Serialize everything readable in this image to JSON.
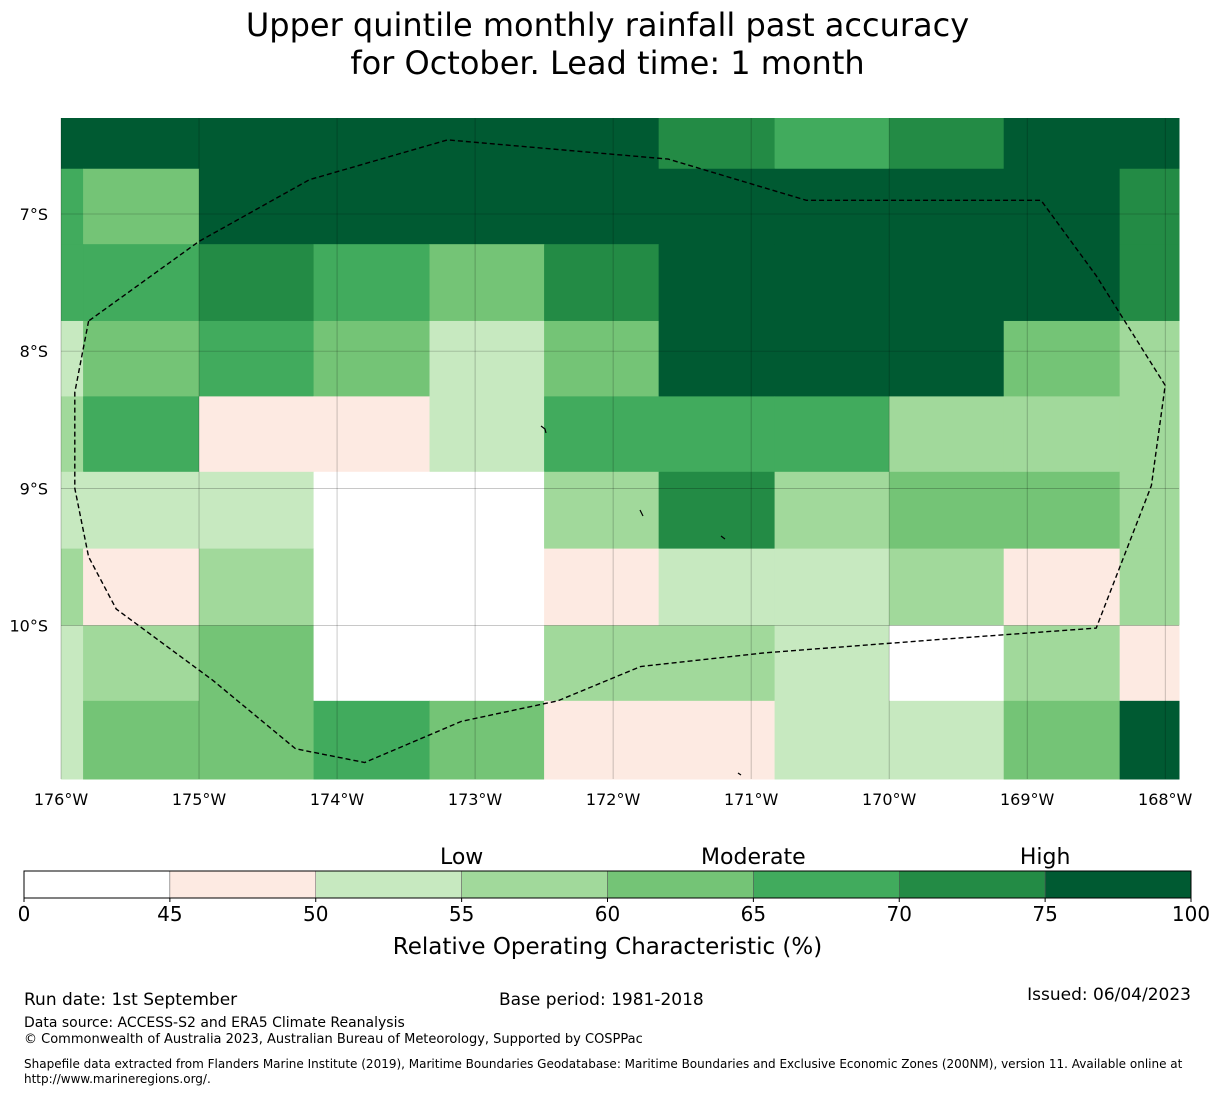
{
  "title_lines": [
    "Upper quintile monthly rainfall past accuracy",
    "for October. Lead time: 1 month"
  ],
  "chart_data": {
    "type": "heatmap",
    "map": {
      "lon_range": [
        -176,
        -167.9
      ],
      "lat_range": [
        -11.12,
        -6.3
      ],
      "x_tick_values": [
        -176,
        -175,
        -174,
        -173,
        -172,
        -171,
        -170,
        -169,
        -168
      ],
      "x_tick_labels": [
        "176°W",
        "175°W",
        "174°W",
        "173°W",
        "172°W",
        "171°W",
        "170°W",
        "169°W",
        "168°W"
      ],
      "y_tick_values": [
        -7,
        -8,
        -9,
        -10
      ],
      "y_tick_labels": [
        "7°S",
        "8°S",
        "9°S",
        "10°S"
      ],
      "cell_lon_edges": [
        -176,
        -175.84,
        -175.0,
        -174.17,
        -173.33,
        -172.5,
        -171.67,
        -170.83,
        -170.0,
        -169.17,
        -168.33,
        -167.9
      ],
      "cell_lat_edges": [
        -6.3,
        -6.67,
        -7.22,
        -7.78,
        -8.33,
        -8.88,
        -9.44,
        -10.0,
        -10.55,
        -11.12
      ],
      "roc_values": [
        [
          80,
          80,
          80,
          80,
          80,
          80,
          72,
          67,
          72,
          80,
          80
        ],
        [
          67,
          62,
          80,
          80,
          80,
          80,
          80,
          80,
          80,
          80,
          72
        ],
        [
          67,
          67,
          72,
          67,
          62,
          72,
          80,
          80,
          80,
          80,
          72
        ],
        [
          52,
          62,
          67,
          62,
          52,
          62,
          80,
          80,
          80,
          62,
          57
        ],
        [
          57,
          67,
          47,
          47,
          52,
          67,
          67,
          67,
          57,
          57,
          57
        ],
        [
          52,
          52,
          52,
          40,
          40,
          57,
          72,
          57,
          62,
          62,
          57
        ],
        [
          57,
          47,
          57,
          40,
          40,
          47,
          52,
          52,
          57,
          47,
          57
        ],
        [
          52,
          57,
          62,
          40,
          40,
          57,
          57,
          52,
          40,
          57,
          47
        ],
        [
          52,
          62,
          62,
          67,
          62,
          47,
          47,
          52,
          52,
          62,
          80
        ]
      ],
      "eez_boundary_lonlat": [
        [
          -175.8,
          -7.78
        ],
        [
          -175.9,
          -8.3
        ],
        [
          -175.9,
          -9.0
        ],
        [
          -175.8,
          -9.5
        ],
        [
          -175.6,
          -9.88
        ],
        [
          -174.9,
          -10.4
        ],
        [
          -174.3,
          -10.9
        ],
        [
          -173.8,
          -11.0
        ],
        [
          -173.1,
          -10.7
        ],
        [
          -172.4,
          -10.55
        ],
        [
          -171.8,
          -10.3
        ],
        [
          -170.9,
          -10.2
        ],
        [
          -169.6,
          -10.1
        ],
        [
          -168.5,
          -10.02
        ],
        [
          -168.1,
          -8.98
        ],
        [
          -168.0,
          -8.25
        ],
        [
          -168.5,
          -7.45
        ],
        [
          -168.9,
          -6.9
        ],
        [
          -169.8,
          -6.9
        ],
        [
          -170.6,
          -6.9
        ],
        [
          -171.6,
          -6.6
        ],
        [
          -173.2,
          -6.46
        ],
        [
          -174.2,
          -6.75
        ],
        [
          -175.0,
          -7.2
        ],
        [
          -175.8,
          -7.78
        ]
      ]
    },
    "colorbar": {
      "bounds": [
        0,
        45,
        50,
        55,
        60,
        65,
        70,
        75,
        100
      ],
      "tick_labels": [
        "0",
        "45",
        "50",
        "55",
        "60",
        "65",
        "70",
        "75",
        "100"
      ],
      "colors": [
        "#ffffff",
        "#fdeae2",
        "#c7e9c0",
        "#a1d99b",
        "#74c476",
        "#41ab5d",
        "#238b45",
        "#005a32"
      ],
      "category_labels": [
        "Low",
        "Moderate",
        "High"
      ],
      "label": "Relative Operating Characteristic (%)"
    }
  },
  "footer": {
    "run_date": "Run date: 1st September",
    "base_period": "Base period: 1981-2018",
    "issued": "Issued: 06/04/2023",
    "data_source": "Data source: ACCESS-S2 and ERA5 Climate Reanalysis",
    "copyright": "© Commonwealth of Australia 2023, Australian Bureau of Meteorology, Supported by COSPPac",
    "shapefile": "Shapefile data extracted from Flanders Marine Institute (2019), Maritime Boundaries Geodatabase: Maritime Boundaries and Exclusive Economic Zones (200NM), version 11. Available online at http://www.marineregions.org/."
  }
}
